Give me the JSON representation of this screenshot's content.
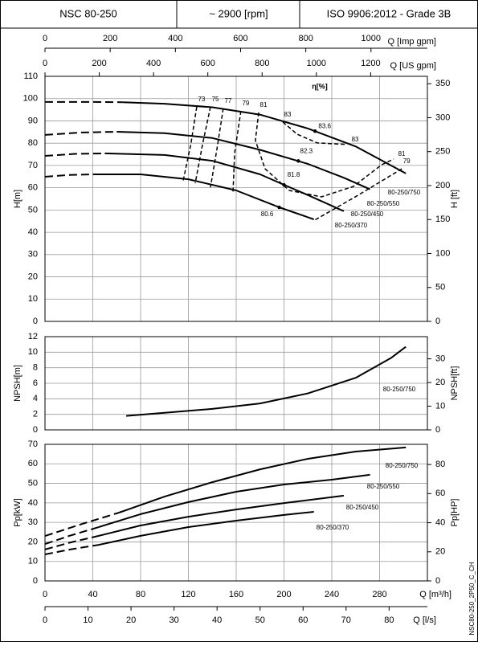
{
  "header": {
    "model": "NSC 80-250",
    "speed": "~ 2900 [rpm]",
    "standard": "ISO 9906:2012 - Grade 3B"
  },
  "drawing_code": "NSC80-250_2P50_C_CH",
  "chart_data": [
    {
      "type": "line",
      "color": "#000000",
      "ylabel": "H[m]",
      "y2label": "H [ft]",
      "annotation": "η[%]",
      "xlim": [
        0,
        320
      ],
      "xticks": [
        0,
        40,
        80,
        120,
        160,
        200,
        240,
        280
      ],
      "ylim": [
        0,
        110
      ],
      "yticks": [
        0,
        10,
        20,
        30,
        40,
        50,
        60,
        70,
        80,
        90,
        100,
        110
      ],
      "y2lim": [
        0,
        360.9
      ],
      "y2ticks": [
        0,
        50,
        100,
        150,
        200,
        250,
        300,
        350
      ],
      "x2label": "Q [Imp gpm]",
      "x2lim": [
        0,
        1173
      ],
      "x2ticks": [
        0,
        200,
        400,
        600,
        800,
        1000
      ],
      "x3label": "Q [US gpm]",
      "x3lim": [
        0,
        1409
      ],
      "x3ticks": [
        0,
        200,
        400,
        600,
        800,
        1000,
        1200
      ],
      "series": [
        {
          "x": [
            0,
            20,
            40,
            65
          ],
          "values": [
            98.5,
            98.5,
            98.5,
            98.4
          ],
          "line_style": "dashed"
        },
        {
          "name": "80-250/750",
          "x": [
            65,
            100,
            140,
            180,
            220,
            260,
            302
          ],
          "values": [
            98.4,
            97.7,
            96.1,
            92.8,
            86.6,
            78.5,
            66.4
          ]
        },
        {
          "x": [
            0,
            30,
            60
          ],
          "values": [
            83.7,
            84.8,
            85.1
          ],
          "line_style": "dashed"
        },
        {
          "name": "80-250/550",
          "x": [
            60,
            100,
            140,
            180,
            220,
            250,
            272
          ],
          "values": [
            85.1,
            84.5,
            82.3,
            77.0,
            70.7,
            64.5,
            59.3
          ]
        },
        {
          "x": [
            0,
            25,
            50
          ],
          "values": [
            74.3,
            75.2,
            75.4
          ],
          "line_style": "dashed"
        },
        {
          "name": "80-250/450",
          "x": [
            50,
            100,
            140,
            180,
            200,
            220,
            250
          ],
          "values": [
            75.4,
            74.7,
            72.1,
            66.0,
            61.3,
            56.7,
            49.5
          ]
        },
        {
          "x": [
            0,
            20,
            40
          ],
          "values": [
            64.9,
            65.7,
            66.0
          ],
          "line_style": "dashed"
        },
        {
          "name": "80-250/370",
          "x": [
            40,
            80,
            120,
            160,
            196,
            225
          ],
          "values": [
            66.0,
            66.0,
            63.8,
            58.8,
            51.2,
            45.8
          ]
        }
      ],
      "efficiency_contours": [
        {
          "label": "73",
          "x": [
            127,
            122,
            115.6
          ],
          "values": [
            96.3,
            79.4,
            63.1
          ]
        },
        {
          "label": "75",
          "x": [
            138.5,
            131.8,
            125.7
          ],
          "values": [
            96.3,
            79.4,
            62.0
          ]
        },
        {
          "label": "77",
          "x": [
            149.2,
            143.9,
            138.5
          ],
          "values": [
            95.6,
            77.5,
            60.2
          ]
        },
        {
          "label": "79",
          "x": [
            164,
            158.7,
            157.3
          ],
          "values": [
            94.5,
            75.7,
            57.7
          ]
        },
        {
          "label": "81",
          "end_label": "81",
          "x": [
            178.8,
            176.1,
            184.2,
            204.4,
            231.3,
            258.2,
            281.7,
            291.8
          ],
          "values": [
            93.8,
            81.2,
            68.5,
            58.8,
            55.9,
            60.6,
            70.3,
            72.9
          ]
        },
        {
          "label": "83",
          "end_label": "83",
          "x": [
            199,
            211.1,
            227.9,
            252.8
          ],
          "values": [
            89.5,
            84.0,
            80.1,
            79.4
          ]
        },
        {
          "label": "79",
          "x": [
            298.6,
            260,
            224.6
          ],
          "values": [
            68.5,
            56,
            45.1
          ]
        }
      ],
      "efficiency_points": [
        {
          "label": "83.6",
          "x": 226,
          "value": 85.4
        },
        {
          "label": "82.3",
          "x": 212,
          "value": 72.0
        },
        {
          "label": "81.8",
          "x": 200,
          "value": 61.3
        },
        {
          "label": "80.6",
          "x": 196,
          "value": 51.2
        }
      ]
    },
    {
      "type": "line",
      "color": "#000000",
      "ylabel": "NPSH[m]",
      "y2label": "NPSH[ft]",
      "xlim": [
        0,
        320
      ],
      "xticks": [
        0,
        40,
        80,
        120,
        160,
        200,
        240,
        280
      ],
      "ylim": [
        0,
        12
      ],
      "yticks": [
        0,
        2,
        4,
        6,
        8,
        10,
        12
      ],
      "y2lim": [
        0,
        39.37
      ],
      "y2ticks": [
        0,
        10,
        20,
        30
      ],
      "series": [
        {
          "name": "80-250/750",
          "x": [
            68,
            100,
            140,
            180,
            220,
            260,
            290,
            302
          ],
          "values": [
            1.8,
            2.2,
            2.7,
            3.4,
            4.7,
            6.7,
            9.3,
            10.7
          ]
        }
      ]
    },
    {
      "type": "line",
      "color": "#000000",
      "ylabel": "Pp[kW]",
      "y2label": "Pp[HP]",
      "xlabel": "Q [m³/h]",
      "xlim": [
        0,
        320
      ],
      "xticks": [
        0,
        40,
        80,
        120,
        160,
        200,
        240,
        280
      ],
      "ylim": [
        0,
        70
      ],
      "yticks": [
        0,
        10,
        20,
        30,
        40,
        50,
        60,
        70
      ],
      "y2lim": [
        0,
        93.87
      ],
      "y2ticks": [
        0,
        20,
        40,
        60,
        80
      ],
      "x2label": "Q [l/s]",
      "x2lim": [
        0,
        88.9
      ],
      "x2ticks": [
        0,
        10,
        20,
        30,
        40,
        50,
        60,
        70,
        80
      ],
      "series": [
        {
          "x": [
            0,
            30,
            62
          ],
          "values": [
            23.0,
            29.0,
            35.0
          ],
          "line_style": "dashed"
        },
        {
          "name": "80-250/750",
          "x": [
            62,
            100,
            140,
            180,
            220,
            260,
            302
          ],
          "values": [
            35.0,
            43.2,
            50.6,
            57.2,
            62.6,
            66.3,
            68.4
          ]
        },
        {
          "x": [
            0,
            20,
            45
          ],
          "values": [
            18.9,
            23.0,
            27.6
          ],
          "line_style": "dashed"
        },
        {
          "name": "80-250/550",
          "x": [
            45,
            80,
            120,
            160,
            200,
            240,
            272
          ],
          "values": [
            27.6,
            34.2,
            40.4,
            45.7,
            49.4,
            51.9,
            54.4
          ]
        },
        {
          "x": [
            0,
            20,
            45
          ],
          "values": [
            16.1,
            19.5,
            23.1
          ],
          "line_style": "dashed"
        },
        {
          "name": "80-250/450",
          "x": [
            45,
            80,
            120,
            160,
            200,
            250
          ],
          "values": [
            23.1,
            28.4,
            32.9,
            36.6,
            39.9,
            43.7
          ]
        },
        {
          "x": [
            0,
            20,
            45
          ],
          "values": [
            13.6,
            16.0,
            18.5
          ],
          "line_style": "dashed"
        },
        {
          "name": "80-250/370",
          "x": [
            45,
            80,
            120,
            160,
            200,
            225
          ],
          "values": [
            18.5,
            23.1,
            27.6,
            30.9,
            33.8,
            35.4
          ]
        }
      ]
    }
  ]
}
